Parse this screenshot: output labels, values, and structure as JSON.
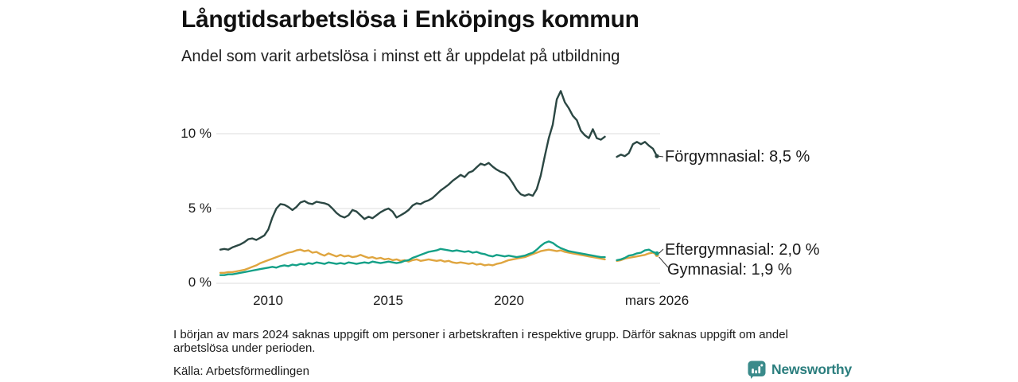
{
  "header": {
    "title": "Långtidsarbetslösa i Enköpings kommun",
    "subtitle": "Andel som varit arbetslösa i minst ett år uppdelat på utbildning"
  },
  "footnote": "I början av mars 2024 saknas uppgift om personer i arbetskraften i respektive grupp. Därför saknas uppgift om andel arbetslösa under perioden.",
  "source": "Källa: Arbetsförmedlingen",
  "branding": {
    "name": "Newsworthy",
    "icon": "bar-chart-speech-bubble",
    "color": "#2b7e7e",
    "icon_bg": "#3a8a8a"
  },
  "chart_data": {
    "type": "line",
    "title": "Långtidsarbetslösa i Enköpings kommun",
    "subtitle": "Andel som varit arbetslösa i minst ett år uppdelat på utbildning",
    "unit": "%",
    "grid": "horizontal-only",
    "legend_position": "end-of-line-labels",
    "colors": {
      "grid": "#dcdcdc",
      "text": "#1a1a1a",
      "leader": "#333333"
    },
    "x_axis": {
      "start": 2008.0,
      "end": 2026.17,
      "ticks": [
        {
          "value": 2010,
          "label": "2010"
        },
        {
          "value": 2015,
          "label": "2015"
        },
        {
          "value": 2020,
          "label": "2020"
        },
        {
          "value": 2026.17,
          "label": "mars 2026"
        }
      ]
    },
    "y_axis": {
      "min": 0,
      "max": 13.2,
      "ticks": [
        {
          "value": 0,
          "label": "0 %"
        },
        {
          "value": 5,
          "label": "5 %"
        },
        {
          "value": 10,
          "label": "10 %"
        }
      ]
    },
    "missing_data_period": "mars 2024 – mitten av 2024 (lucka i serierna)",
    "x_step_years": 0.16667,
    "series": [
      {
        "id": "gymnasial",
        "name": "Gymnasial",
        "end_label": "Gymnasial: 1,9 %",
        "end_value": 1.9,
        "color": "#dfa53f",
        "values": [
          0.7,
          0.7,
          0.75,
          0.75,
          0.8,
          0.85,
          0.9,
          1.0,
          1.1,
          1.2,
          1.35,
          1.45,
          1.55,
          1.65,
          1.75,
          1.85,
          1.95,
          2.05,
          2.1,
          2.2,
          2.25,
          2.15,
          2.2,
          2.05,
          2.1,
          1.95,
          1.85,
          2.0,
          1.9,
          1.8,
          1.9,
          1.8,
          1.85,
          1.75,
          1.8,
          1.9,
          1.8,
          1.7,
          1.75,
          1.65,
          1.7,
          1.6,
          1.65,
          1.55,
          1.6,
          1.5,
          1.55,
          1.45,
          1.55,
          1.6,
          1.5,
          1.55,
          1.6,
          1.55,
          1.5,
          1.55,
          1.45,
          1.5,
          1.4,
          1.35,
          1.4,
          1.35,
          1.3,
          1.35,
          1.25,
          1.3,
          1.2,
          1.25,
          1.2,
          1.3,
          1.35,
          1.45,
          1.55,
          1.6,
          1.65,
          1.7,
          1.75,
          1.85,
          1.95,
          2.05,
          2.15,
          2.2,
          2.25,
          2.2,
          2.15,
          2.2,
          2.1,
          2.05,
          2.0,
          1.95,
          1.9,
          1.85,
          1.8,
          1.75,
          1.7,
          1.65,
          1.6,
          null,
          null,
          1.5,
          1.55,
          1.65,
          1.7,
          1.75,
          1.8,
          1.85,
          1.9,
          2.0,
          2.05,
          1.9
        ]
      },
      {
        "id": "eftergymnasial",
        "name": "Eftergymnasial",
        "end_label": "Eftergymnasial: 2,0 %",
        "end_value": 2.0,
        "color": "#14a087",
        "values": [
          0.55,
          0.55,
          0.6,
          0.6,
          0.65,
          0.7,
          0.75,
          0.8,
          0.85,
          0.9,
          0.95,
          1.0,
          1.05,
          1.1,
          1.05,
          1.15,
          1.2,
          1.15,
          1.25,
          1.2,
          1.3,
          1.25,
          1.35,
          1.3,
          1.4,
          1.35,
          1.3,
          1.4,
          1.35,
          1.3,
          1.35,
          1.3,
          1.4,
          1.35,
          1.3,
          1.35,
          1.4,
          1.35,
          1.45,
          1.4,
          1.35,
          1.4,
          1.45,
          1.4,
          1.35,
          1.4,
          1.5,
          1.55,
          1.7,
          1.8,
          1.9,
          2.0,
          2.1,
          2.15,
          2.2,
          2.3,
          2.25,
          2.2,
          2.15,
          2.2,
          2.15,
          2.1,
          2.15,
          2.05,
          2.1,
          2.0,
          1.95,
          1.85,
          1.8,
          1.9,
          1.85,
          1.8,
          1.85,
          1.8,
          1.75,
          1.8,
          1.85,
          1.95,
          2.05,
          2.25,
          2.5,
          2.7,
          2.8,
          2.7,
          2.5,
          2.35,
          2.25,
          2.15,
          2.1,
          2.05,
          2.0,
          1.95,
          1.9,
          1.85,
          1.8,
          1.75,
          1.75,
          null,
          null,
          1.55,
          1.6,
          1.7,
          1.85,
          1.9,
          2.0,
          2.05,
          2.2,
          2.25,
          2.1,
          2.0
        ]
      },
      {
        "id": "forgymnasial",
        "name": "Förgymnasial",
        "end_label": "Förgymnasial: 8,5 %",
        "end_value": 8.5,
        "color": "#2b4743",
        "values": [
          2.25,
          2.3,
          2.25,
          2.4,
          2.5,
          2.6,
          2.75,
          2.95,
          3.0,
          2.9,
          3.05,
          3.2,
          3.6,
          4.4,
          5.0,
          5.3,
          5.25,
          5.1,
          4.9,
          5.1,
          5.4,
          5.5,
          5.35,
          5.3,
          5.45,
          5.4,
          5.35,
          5.25,
          5.0,
          4.7,
          4.5,
          4.4,
          4.55,
          4.9,
          4.8,
          4.55,
          4.3,
          4.45,
          4.35,
          4.55,
          4.75,
          4.9,
          5.0,
          4.8,
          4.4,
          4.55,
          4.7,
          4.9,
          5.2,
          5.35,
          5.3,
          5.45,
          5.55,
          5.7,
          5.95,
          6.2,
          6.4,
          6.6,
          6.85,
          7.05,
          7.25,
          7.1,
          7.4,
          7.5,
          7.75,
          8.0,
          7.9,
          8.05,
          7.8,
          7.6,
          7.45,
          7.35,
          7.1,
          6.7,
          6.25,
          5.95,
          5.85,
          5.95,
          5.85,
          6.3,
          7.2,
          8.5,
          9.7,
          10.6,
          12.3,
          12.85,
          12.1,
          11.7,
          11.2,
          10.9,
          10.2,
          9.9,
          9.7,
          10.3,
          9.7,
          9.6,
          9.8,
          null,
          null,
          8.45,
          8.6,
          8.5,
          8.7,
          9.3,
          9.45,
          9.3,
          9.45,
          9.2,
          9.0,
          8.5
        ]
      }
    ]
  }
}
